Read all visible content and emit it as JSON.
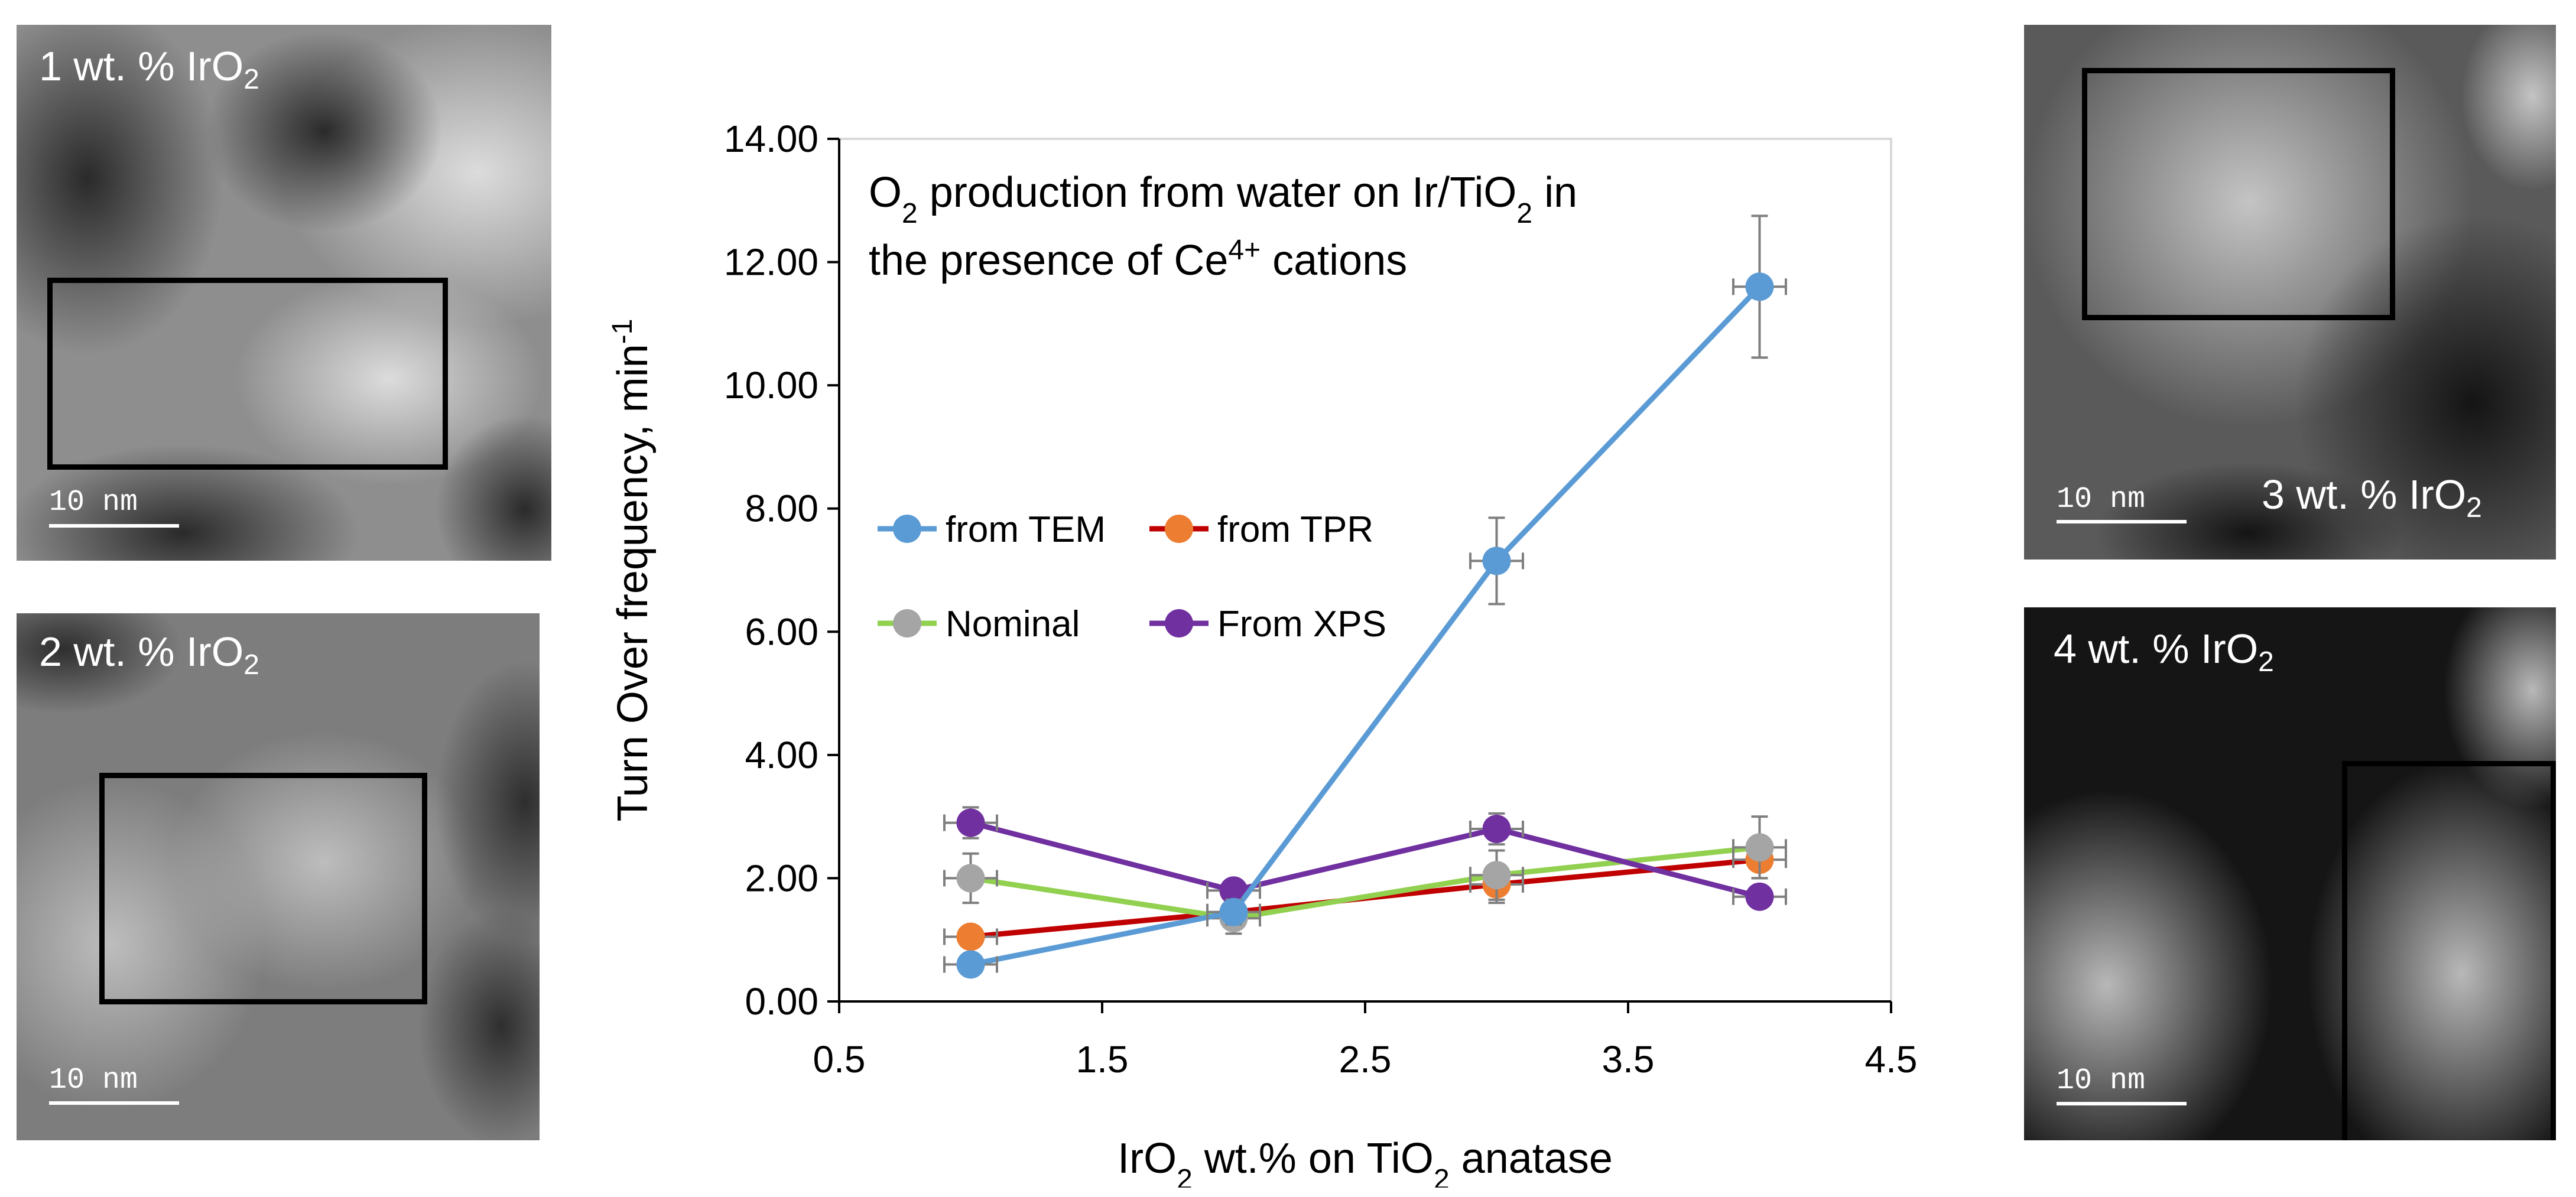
{
  "panels": [
    {
      "label_main": "1 wt. % IrO",
      "label_sub": "2",
      "scale": "10 nm"
    },
    {
      "label_main": "2 wt. % IrO",
      "label_sub": "2",
      "scale": "10 nm"
    },
    {
      "label_main": "3 wt. % IrO",
      "label_sub": "2",
      "scale": "10 nm"
    },
    {
      "label_main": "4 wt. % IrO",
      "label_sub": "2",
      "scale": "10 nm"
    }
  ],
  "chart_data": {
    "type": "scatter",
    "title_line1": [
      "O",
      "2",
      " production from water on Ir/TiO",
      "2",
      " in"
    ],
    "title_line2": [
      "the presence of Ce",
      "4+",
      " cations"
    ],
    "xlabel": [
      "IrO",
      "2",
      " wt.% on TiO",
      "2",
      " anatase"
    ],
    "ylabel": [
      "Turn Over frequency, min",
      "-1"
    ],
    "xlim": [
      0.5,
      4.5
    ],
    "ylim": [
      0,
      14
    ],
    "xticks": [
      0.5,
      1.5,
      2.5,
      3.5,
      4.5
    ],
    "xtick_labels": [
      "0.5",
      "1.5",
      "2.5",
      "3.5",
      "4.5"
    ],
    "yticks": [
      0,
      2,
      4,
      6,
      8,
      10,
      12,
      14
    ],
    "ytick_labels": [
      "0.00",
      "2.00",
      "4.00",
      "6.00",
      "8.00",
      "10.00",
      "12.00",
      "14.00"
    ],
    "x_error": 0.1,
    "series": [
      {
        "name": "from TEM",
        "marker_color": "#5b9bd5",
        "line_color": "#5b9bd5",
        "x": [
          1,
          2,
          3,
          4
        ],
        "y": [
          0.6,
          1.45,
          7.15,
          11.6
        ],
        "yerr": [
          0.1,
          0.2,
          0.7,
          1.15
        ]
      },
      {
        "name": "from TPR",
        "marker_color": "#ed7d31",
        "line_color": "#c00000",
        "x": [
          1,
          2,
          3,
          4
        ],
        "y": [
          1.05,
          1.45,
          1.9,
          2.3
        ],
        "yerr": [
          0.15,
          0.2,
          0.3,
          0.3
        ]
      },
      {
        "name": "Nominal",
        "marker_color": "#a5a5a5",
        "line_color": "#92d050",
        "x": [
          1,
          2,
          3,
          4
        ],
        "y": [
          2.0,
          1.35,
          2.05,
          2.5
        ],
        "yerr": [
          0.4,
          0.25,
          0.4,
          0.5
        ]
      },
      {
        "name": "From XPS",
        "marker_color": "#7030a0",
        "line_color": "#7030a0",
        "x": [
          1,
          2,
          3,
          4
        ],
        "y": [
          2.9,
          1.8,
          2.8,
          1.7
        ],
        "yerr": [
          0.25,
          0.15,
          0.25,
          0.15
        ]
      }
    ]
  }
}
